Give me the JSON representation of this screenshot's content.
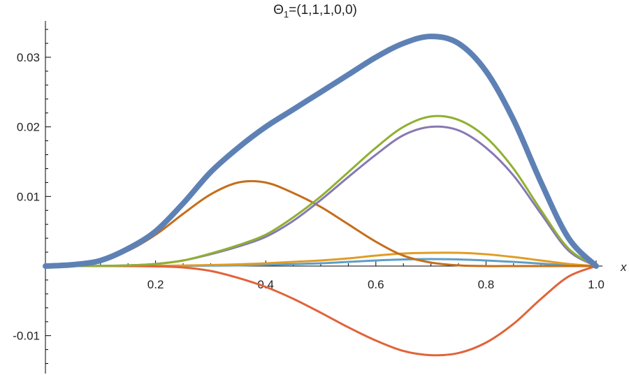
{
  "chart_data": {
    "type": "line",
    "title_main": "Θ",
    "title_sub": "1",
    "title_rest": "=(1,1,1,0,0)",
    "xlabel": "x",
    "ylabel": "",
    "xlim": [
      0.0,
      1.0
    ],
    "ylim": [
      -0.015,
      0.035
    ],
    "x_ticks": [
      0.2,
      0.4,
      0.6,
      0.8,
      1.0
    ],
    "x_tick_labels": [
      "0.2",
      "0.4",
      "0.6",
      "0.8",
      "1.0"
    ],
    "y_ticks": [
      -0.01,
      0.01,
      0.02,
      0.03
    ],
    "y_tick_labels": [
      "-0.01",
      "0.01",
      "0.02",
      "0.03"
    ],
    "grid": false,
    "x": [
      0.0,
      0.05,
      0.1,
      0.15,
      0.2,
      0.25,
      0.3,
      0.35,
      0.4,
      0.45,
      0.5,
      0.55,
      0.6,
      0.65,
      0.7,
      0.75,
      0.8,
      0.85,
      0.9,
      0.95,
      1.0
    ],
    "series": [
      {
        "color": "#5E81B5",
        "width": 8,
        "values": [
          0,
          0.0002,
          0.0008,
          0.0025,
          0.005,
          0.009,
          0.0135,
          0.017,
          0.02,
          0.0225,
          0.025,
          0.0275,
          0.03,
          0.032,
          0.033,
          0.032,
          0.028,
          0.021,
          0.012,
          0.004,
          0.0
        ]
      },
      {
        "color": "#8FB032",
        "width": 3,
        "values": [
          0,
          0,
          3e-05,
          0.0001,
          0.0003,
          0.0008,
          0.0018,
          0.003,
          0.0045,
          0.007,
          0.01,
          0.0135,
          0.017,
          0.02,
          0.0215,
          0.021,
          0.0185,
          0.014,
          0.008,
          0.0025,
          0
        ]
      },
      {
        "color": "#8778B3",
        "width": 3,
        "values": [
          0,
          0,
          3e-05,
          0.0001,
          0.0003,
          0.0008,
          0.0017,
          0.0028,
          0.0042,
          0.0065,
          0.0095,
          0.0128,
          0.016,
          0.0188,
          0.02,
          0.0195,
          0.017,
          0.013,
          0.0075,
          0.0022,
          0
        ]
      },
      {
        "color": "#C56E1A",
        "width": 3,
        "values": [
          0,
          0.0002,
          0.0008,
          0.0022,
          0.0045,
          0.0075,
          0.0103,
          0.012,
          0.012,
          0.0105,
          0.0085,
          0.006,
          0.0035,
          0.0015,
          0.0005,
          0.0001,
          0,
          0,
          0,
          0,
          0
        ]
      },
      {
        "color": "#E19C24",
        "width": 3,
        "values": [
          0,
          0,
          0,
          1e-05,
          3e-05,
          8e-05,
          0.00015,
          0.00025,
          0.0004,
          0.0006,
          0.0008,
          0.0011,
          0.0015,
          0.0018,
          0.0019,
          0.0019,
          0.0017,
          0.0013,
          0.0008,
          0.0003,
          0
        ]
      },
      {
        "color": "#5D9EC7",
        "width": 3,
        "values": [
          0,
          0,
          0,
          0,
          1e-05,
          3e-05,
          6e-05,
          0.0001,
          0.00018,
          0.00028,
          0.0004,
          0.0006,
          0.0008,
          0.00095,
          0.001,
          0.00095,
          0.0008,
          0.0006,
          0.00035,
          0.0001,
          0
        ]
      },
      {
        "color": "#E1633A",
        "width": 3,
        "values": [
          0,
          0,
          0,
          -1e-05,
          -5e-05,
          -0.0002,
          -0.0007,
          -0.0017,
          -0.003,
          -0.0047,
          -0.0067,
          -0.0088,
          -0.0107,
          -0.0122,
          -0.0128,
          -0.0125,
          -0.011,
          -0.0083,
          -0.0047,
          -0.0015,
          0
        ]
      }
    ]
  }
}
